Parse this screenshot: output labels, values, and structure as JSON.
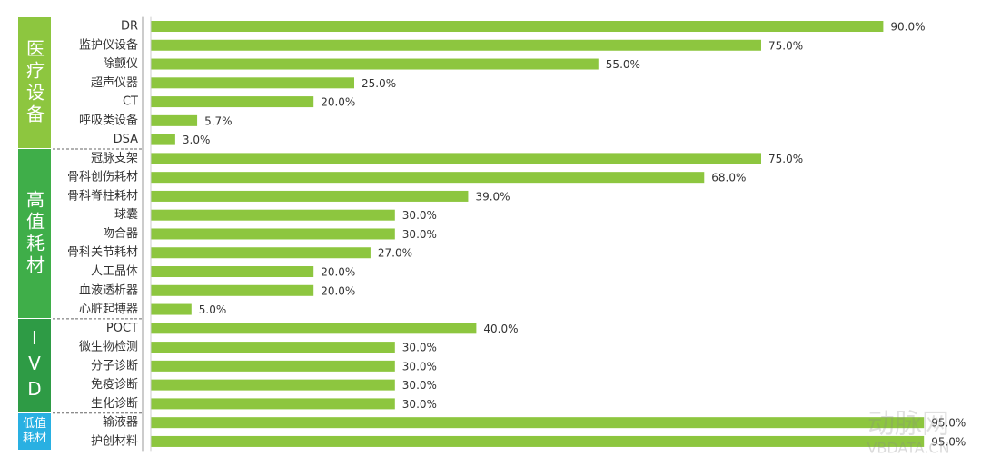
{
  "chart_data": {
    "type": "grouped-hbar",
    "color": "#8dc63f",
    "xlim": [
      0,
      100
    ],
    "groups": [
      {
        "name": "医疗设备",
        "color": "#8dc63f",
        "categories": [
          "DR",
          "监护仪设备",
          "除颤仪",
          "超声仪器",
          "CT",
          "呼吸类设备",
          "DSA"
        ],
        "values": [
          90,
          75,
          55,
          25,
          20,
          5.7,
          3
        ],
        "value_labels": [
          "90.0%",
          "75.0%",
          "55.0%",
          "25.0%",
          "20.0%",
          "5.7%",
          "3.0%"
        ]
      },
      {
        "name": "高值耗材",
        "color": "#3fae49",
        "categories": [
          "冠脉支架",
          "骨科创伤耗材",
          "骨科脊柱耗材",
          "球囊",
          "吻合器",
          "骨科关节耗材",
          "人工晶体",
          "血液透析器",
          "心脏起搏器"
        ],
        "values": [
          75,
          68,
          39,
          30,
          30,
          27,
          20,
          20,
          5
        ],
        "value_labels": [
          "75.0%",
          "68.0%",
          "39.0%",
          "30.0%",
          "30.0%",
          "27.0%",
          "20.0%",
          "20.0%",
          "5.0%"
        ]
      },
      {
        "name": "IVD",
        "color": "#2e9b45",
        "categories": [
          "POCT",
          "微生物检测",
          "分子诊断",
          "免疫诊断",
          "生化诊断"
        ],
        "values": [
          40,
          30,
          30,
          30,
          30
        ],
        "value_labels": [
          "40.0%",
          "30.0%",
          "30.0%",
          "30.0%",
          "30.0%"
        ]
      },
      {
        "name": "低值耗材",
        "color": "#29b0e2",
        "categories": [
          "输液器",
          "护创材料"
        ],
        "values": [
          95,
          95
        ],
        "value_labels": [
          "95.0%",
          "95.0%"
        ]
      }
    ],
    "watermark": [
      "动脉网",
      "VBDATA.CN"
    ]
  }
}
